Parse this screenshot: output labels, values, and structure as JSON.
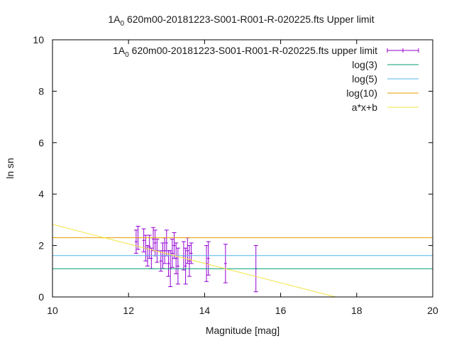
{
  "chart_data": {
    "type": "scatter",
    "title": "1A_0 620m00-20181223-S001-R001-R-020225.fts Upper limit",
    "xlabel": "Magnitude [mag]",
    "ylabel": "ln sn",
    "xlim": [
      10,
      20
    ],
    "ylim": [
      0,
      10
    ],
    "x_ticks": [
      10,
      12,
      14,
      16,
      18,
      20
    ],
    "y_ticks": [
      0,
      2,
      4,
      6,
      8,
      10
    ],
    "grid": false,
    "legend_position": "top-right",
    "series": [
      {
        "name": "1A_0 620m00-20181223-S001-R001-R-020225.fts upper limit",
        "style": "errorbars",
        "color": "#9400d3",
        "points": [
          {
            "x": 12.2,
            "y": 2.15,
            "err": 0.45
          },
          {
            "x": 12.25,
            "y": 2.3,
            "err": 0.45
          },
          {
            "x": 12.4,
            "y": 2.2,
            "err": 0.45
          },
          {
            "x": 12.45,
            "y": 1.9,
            "err": 0.5
          },
          {
            "x": 12.5,
            "y": 1.6,
            "err": 0.4
          },
          {
            "x": 12.55,
            "y": 1.95,
            "err": 0.45
          },
          {
            "x": 12.6,
            "y": 1.5,
            "err": 0.4
          },
          {
            "x": 12.65,
            "y": 2.25,
            "err": 0.45
          },
          {
            "x": 12.7,
            "y": 2.1,
            "err": 0.5
          },
          {
            "x": 12.75,
            "y": 1.8,
            "err": 0.45
          },
          {
            "x": 12.85,
            "y": 1.4,
            "err": 0.4
          },
          {
            "x": 12.9,
            "y": 1.6,
            "err": 0.5
          },
          {
            "x": 12.95,
            "y": 1.8,
            "err": 0.5
          },
          {
            "x": 13.0,
            "y": 2.1,
            "err": 0.5
          },
          {
            "x": 13.05,
            "y": 1.3,
            "err": 0.5
          },
          {
            "x": 13.1,
            "y": 1.1,
            "err": 0.7
          },
          {
            "x": 13.15,
            "y": 1.7,
            "err": 0.55
          },
          {
            "x": 13.2,
            "y": 2.0,
            "err": 0.5
          },
          {
            "x": 13.25,
            "y": 1.5,
            "err": 0.6
          },
          {
            "x": 13.3,
            "y": 1.2,
            "err": 0.7
          },
          {
            "x": 13.45,
            "y": 1.6,
            "err": 0.55
          },
          {
            "x": 13.5,
            "y": 1.2,
            "err": 0.7
          },
          {
            "x": 13.55,
            "y": 1.8,
            "err": 0.5
          },
          {
            "x": 13.6,
            "y": 1.4,
            "err": 0.6
          },
          {
            "x": 13.65,
            "y": 1.7,
            "err": 0.4
          },
          {
            "x": 14.05,
            "y": 1.3,
            "err": 0.7
          },
          {
            "x": 14.1,
            "y": 1.5,
            "err": 0.65
          },
          {
            "x": 14.55,
            "y": 1.3,
            "err": 0.75
          },
          {
            "x": 15.35,
            "y": 1.1,
            "err": 0.9
          }
        ]
      },
      {
        "name": "log(3)",
        "style": "hline",
        "y": 1.0986,
        "color": "#009e73"
      },
      {
        "name": "log(5)",
        "style": "hline",
        "y": 1.6094,
        "color": "#56b4e9"
      },
      {
        "name": "log(10)",
        "style": "hline",
        "y": 2.3026,
        "color": "#e69f00"
      },
      {
        "name": "a*x+b",
        "style": "line",
        "x": [
          10,
          17.45
        ],
        "y": [
          2.82,
          0
        ],
        "color": "#f0e442"
      }
    ]
  }
}
